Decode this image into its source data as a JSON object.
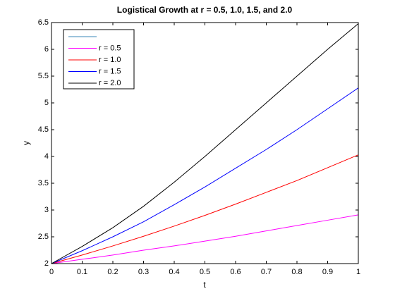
{
  "chart_data": {
    "type": "line",
    "title": "Logistical Growth at r = 0.5, 1.0, 1.5, and 2.0",
    "xlabel": "t",
    "ylabel": "y",
    "x": [
      0,
      0.1,
      0.2,
      0.3,
      0.4,
      0.5,
      0.6,
      0.7,
      0.8,
      0.9,
      1
    ],
    "series": [
      {
        "name": "r = 0.5",
        "color": "#ff00ff",
        "values": [
          2,
          2.08,
          2.16,
          2.25,
          2.33,
          2.42,
          2.51,
          2.61,
          2.71,
          2.81,
          2.91
        ]
      },
      {
        "name": "r = 1.0",
        "color": "#ff0000",
        "values": [
          2,
          2.16,
          2.33,
          2.51,
          2.7,
          2.9,
          3.11,
          3.33,
          3.55,
          3.79,
          4.03
        ]
      },
      {
        "name": "r = 1.5",
        "color": "#0000ff",
        "values": [
          2,
          2.24,
          2.5,
          2.78,
          3.1,
          3.43,
          3.78,
          4.13,
          4.5,
          4.89,
          5.28
        ]
      },
      {
        "name": "r = 2.0",
        "color": "#000000",
        "values": [
          2,
          2.32,
          2.67,
          3.07,
          3.52,
          4.0,
          4.5,
          5.0,
          5.5,
          6.0,
          6.48
        ]
      }
    ],
    "xlim": [
      0,
      1
    ],
    "xticks": [
      0,
      0.1,
      0.2,
      0.3,
      0.4,
      0.5,
      0.6,
      0.7,
      0.8,
      0.9,
      1
    ],
    "ylim": [
      2,
      6.5
    ],
    "yticks": [
      2,
      2.5,
      3,
      3.5,
      4,
      4.5,
      5,
      5.5,
      6,
      6.5
    ],
    "grid": false,
    "legend": "northwest"
  }
}
